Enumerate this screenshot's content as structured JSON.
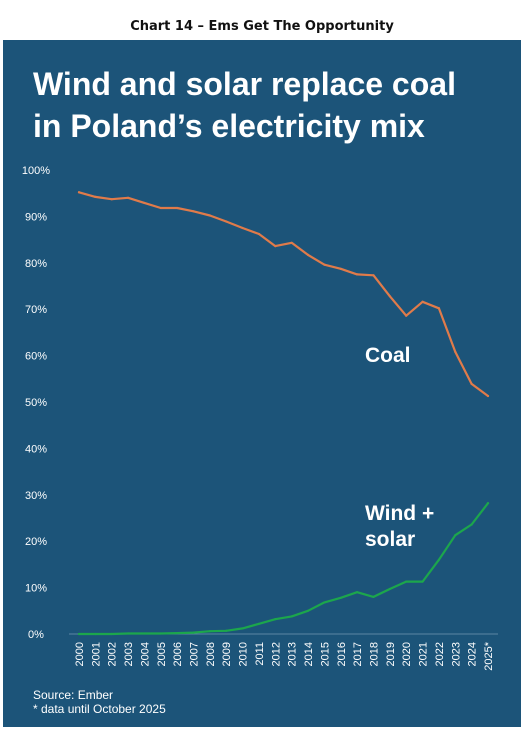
{
  "caption": "Chart 14 – Ems Get The Opportunity",
  "title_line1": "Wind and solar replace coal",
  "title_line2": "in Poland’s electricity mix",
  "source_line1": "Source: Ember",
  "source_line2": "* data until October 2025",
  "colors": {
    "background": "#1c5479",
    "coal": "#e07b4a",
    "wind_solar": "#1ca64c",
    "text": "#ffffff"
  },
  "chart_data": {
    "type": "line",
    "title": "Wind and solar replace coal in Poland’s electricity mix",
    "xlabel": "",
    "ylabel": "",
    "x": [
      "2000",
      "2001",
      "2002",
      "2003",
      "2004",
      "2005",
      "2006",
      "2007",
      "2008",
      "2009",
      "2010",
      "2011",
      "2012",
      "2013",
      "2014",
      "2015",
      "2016",
      "2017",
      "2018",
      "2019",
      "2020",
      "2021",
      "2022",
      "2023",
      "2024",
      "2025*"
    ],
    "yticks": [
      "0%",
      "10%",
      "20%",
      "30%",
      "40%",
      "50%",
      "60%",
      "70%",
      "80%",
      "90%",
      "100%"
    ],
    "ylim": [
      0,
      100
    ],
    "grid": false,
    "legend": "inline labels",
    "series": [
      {
        "name": "Coal",
        "label_lines": [
          "Coal"
        ],
        "color": "#e07b4a",
        "values": [
          95.2,
          94.2,
          93.7,
          94.0,
          92.9,
          91.8,
          91.8,
          91.1,
          90.2,
          88.9,
          87.5,
          86.2,
          83.6,
          84.3,
          81.7,
          79.6,
          78.7,
          77.5,
          77.3,
          72.8,
          68.6,
          71.6,
          70.2,
          60.8,
          53.9,
          51.3
        ]
      },
      {
        "name": "Wind + solar",
        "label_lines": [
          "Wind +",
          "solar"
        ],
        "color": "#1ca64c",
        "values": [
          0.0,
          0.0,
          0.0,
          0.1,
          0.1,
          0.1,
          0.2,
          0.3,
          0.6,
          0.7,
          1.2,
          2.2,
          3.2,
          3.8,
          5.0,
          6.8,
          7.8,
          9.0,
          8.0,
          9.7,
          11.3,
          11.3,
          16.0,
          21.3,
          23.6,
          28.2
        ]
      }
    ]
  }
}
